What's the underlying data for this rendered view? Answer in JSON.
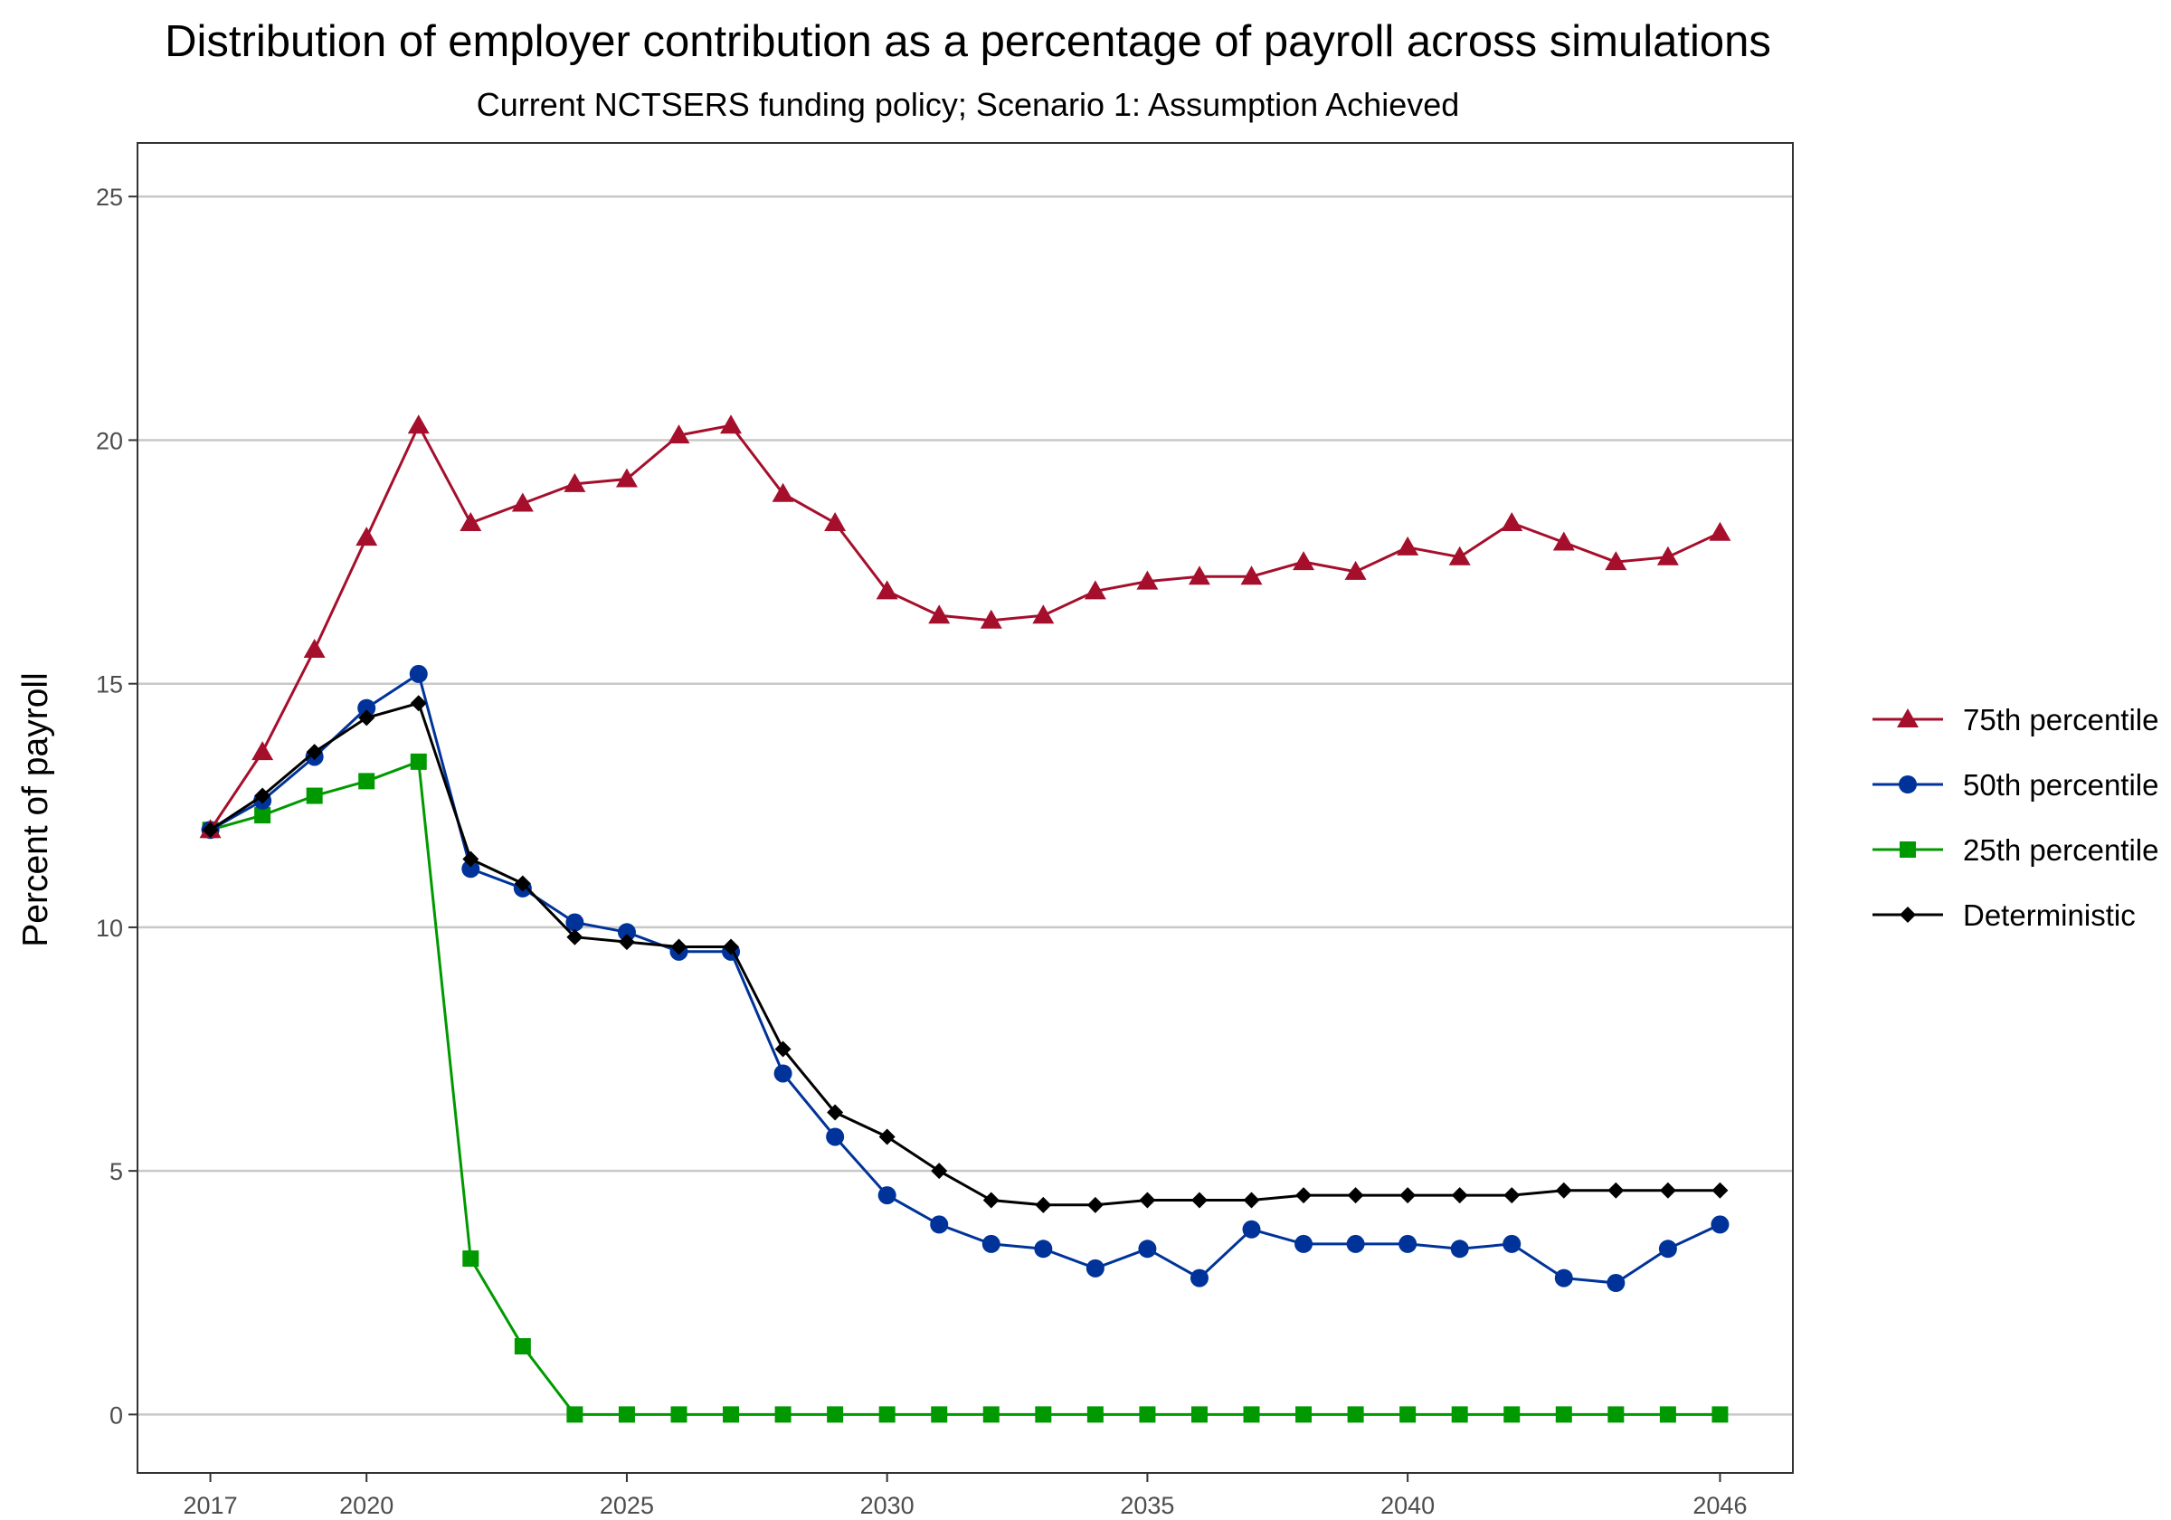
{
  "chart_data": {
    "type": "line",
    "title": "Distribution of employer contribution as a percentage of payroll across simulations",
    "subtitle": "Current NCTSERS funding policy; Scenario 1: Assumption Achieved",
    "xlabel": "",
    "ylabel": "Percent of payroll",
    "xlim": [
      2015.6,
      2047.4
    ],
    "ylim": [
      -1.2,
      26.1
    ],
    "x_ticks": [
      2017,
      2020,
      2025,
      2030,
      2035,
      2040,
      2046
    ],
    "y_ticks": [
      0,
      5,
      10,
      15,
      20,
      25
    ],
    "grid": "horizontal major",
    "legend_position": "right",
    "x": [
      2017,
      2018,
      2019,
      2020,
      2021,
      2022,
      2023,
      2024,
      2025,
      2026,
      2027,
      2028,
      2029,
      2030,
      2031,
      2032,
      2033,
      2034,
      2035,
      2036,
      2037,
      2038,
      2039,
      2040,
      2041,
      2042,
      2043,
      2044,
      2045,
      2046
    ],
    "series": [
      {
        "name": "75th percentile",
        "color": "#a50f2c",
        "marker": "triangle",
        "values": [
          12.0,
          13.6,
          15.7,
          18.0,
          20.3,
          18.3,
          18.7,
          19.1,
          19.2,
          20.1,
          20.3,
          18.9,
          18.3,
          16.9,
          16.4,
          16.3,
          16.4,
          16.9,
          17.1,
          17.2,
          17.2,
          17.5,
          17.3,
          17.8,
          17.6,
          18.3,
          17.9,
          17.5,
          17.6,
          18.1
        ]
      },
      {
        "name": "50th percentile",
        "color": "#003399",
        "marker": "circle",
        "values": [
          12.0,
          12.6,
          13.5,
          14.5,
          15.2,
          11.2,
          10.8,
          10.1,
          9.9,
          9.5,
          9.5,
          7.0,
          5.7,
          4.5,
          3.9,
          3.5,
          3.4,
          3.0,
          3.4,
          2.8,
          3.8,
          3.5,
          3.5,
          3.5,
          3.4,
          3.5,
          2.8,
          2.7,
          3.4,
          3.9
        ]
      },
      {
        "name": "25th percentile",
        "color": "#009900",
        "marker": "square",
        "values": [
          12.0,
          12.3,
          12.7,
          13.0,
          13.4,
          3.2,
          1.4,
          0,
          0,
          0,
          0,
          0,
          0,
          0,
          0,
          0,
          0,
          0,
          0,
          0,
          0,
          0,
          0,
          0,
          0,
          0,
          0,
          0,
          0,
          0
        ]
      },
      {
        "name": "Deterministic",
        "color": "#000000",
        "marker": "diamond",
        "values": [
          12.0,
          12.7,
          13.6,
          14.3,
          14.6,
          11.4,
          10.9,
          9.8,
          9.7,
          9.6,
          9.6,
          7.5,
          6.2,
          5.7,
          5.0,
          4.4,
          4.3,
          4.3,
          4.4,
          4.4,
          4.4,
          4.5,
          4.5,
          4.5,
          4.5,
          4.5,
          4.6,
          4.6,
          4.6,
          4.6
        ]
      }
    ]
  }
}
